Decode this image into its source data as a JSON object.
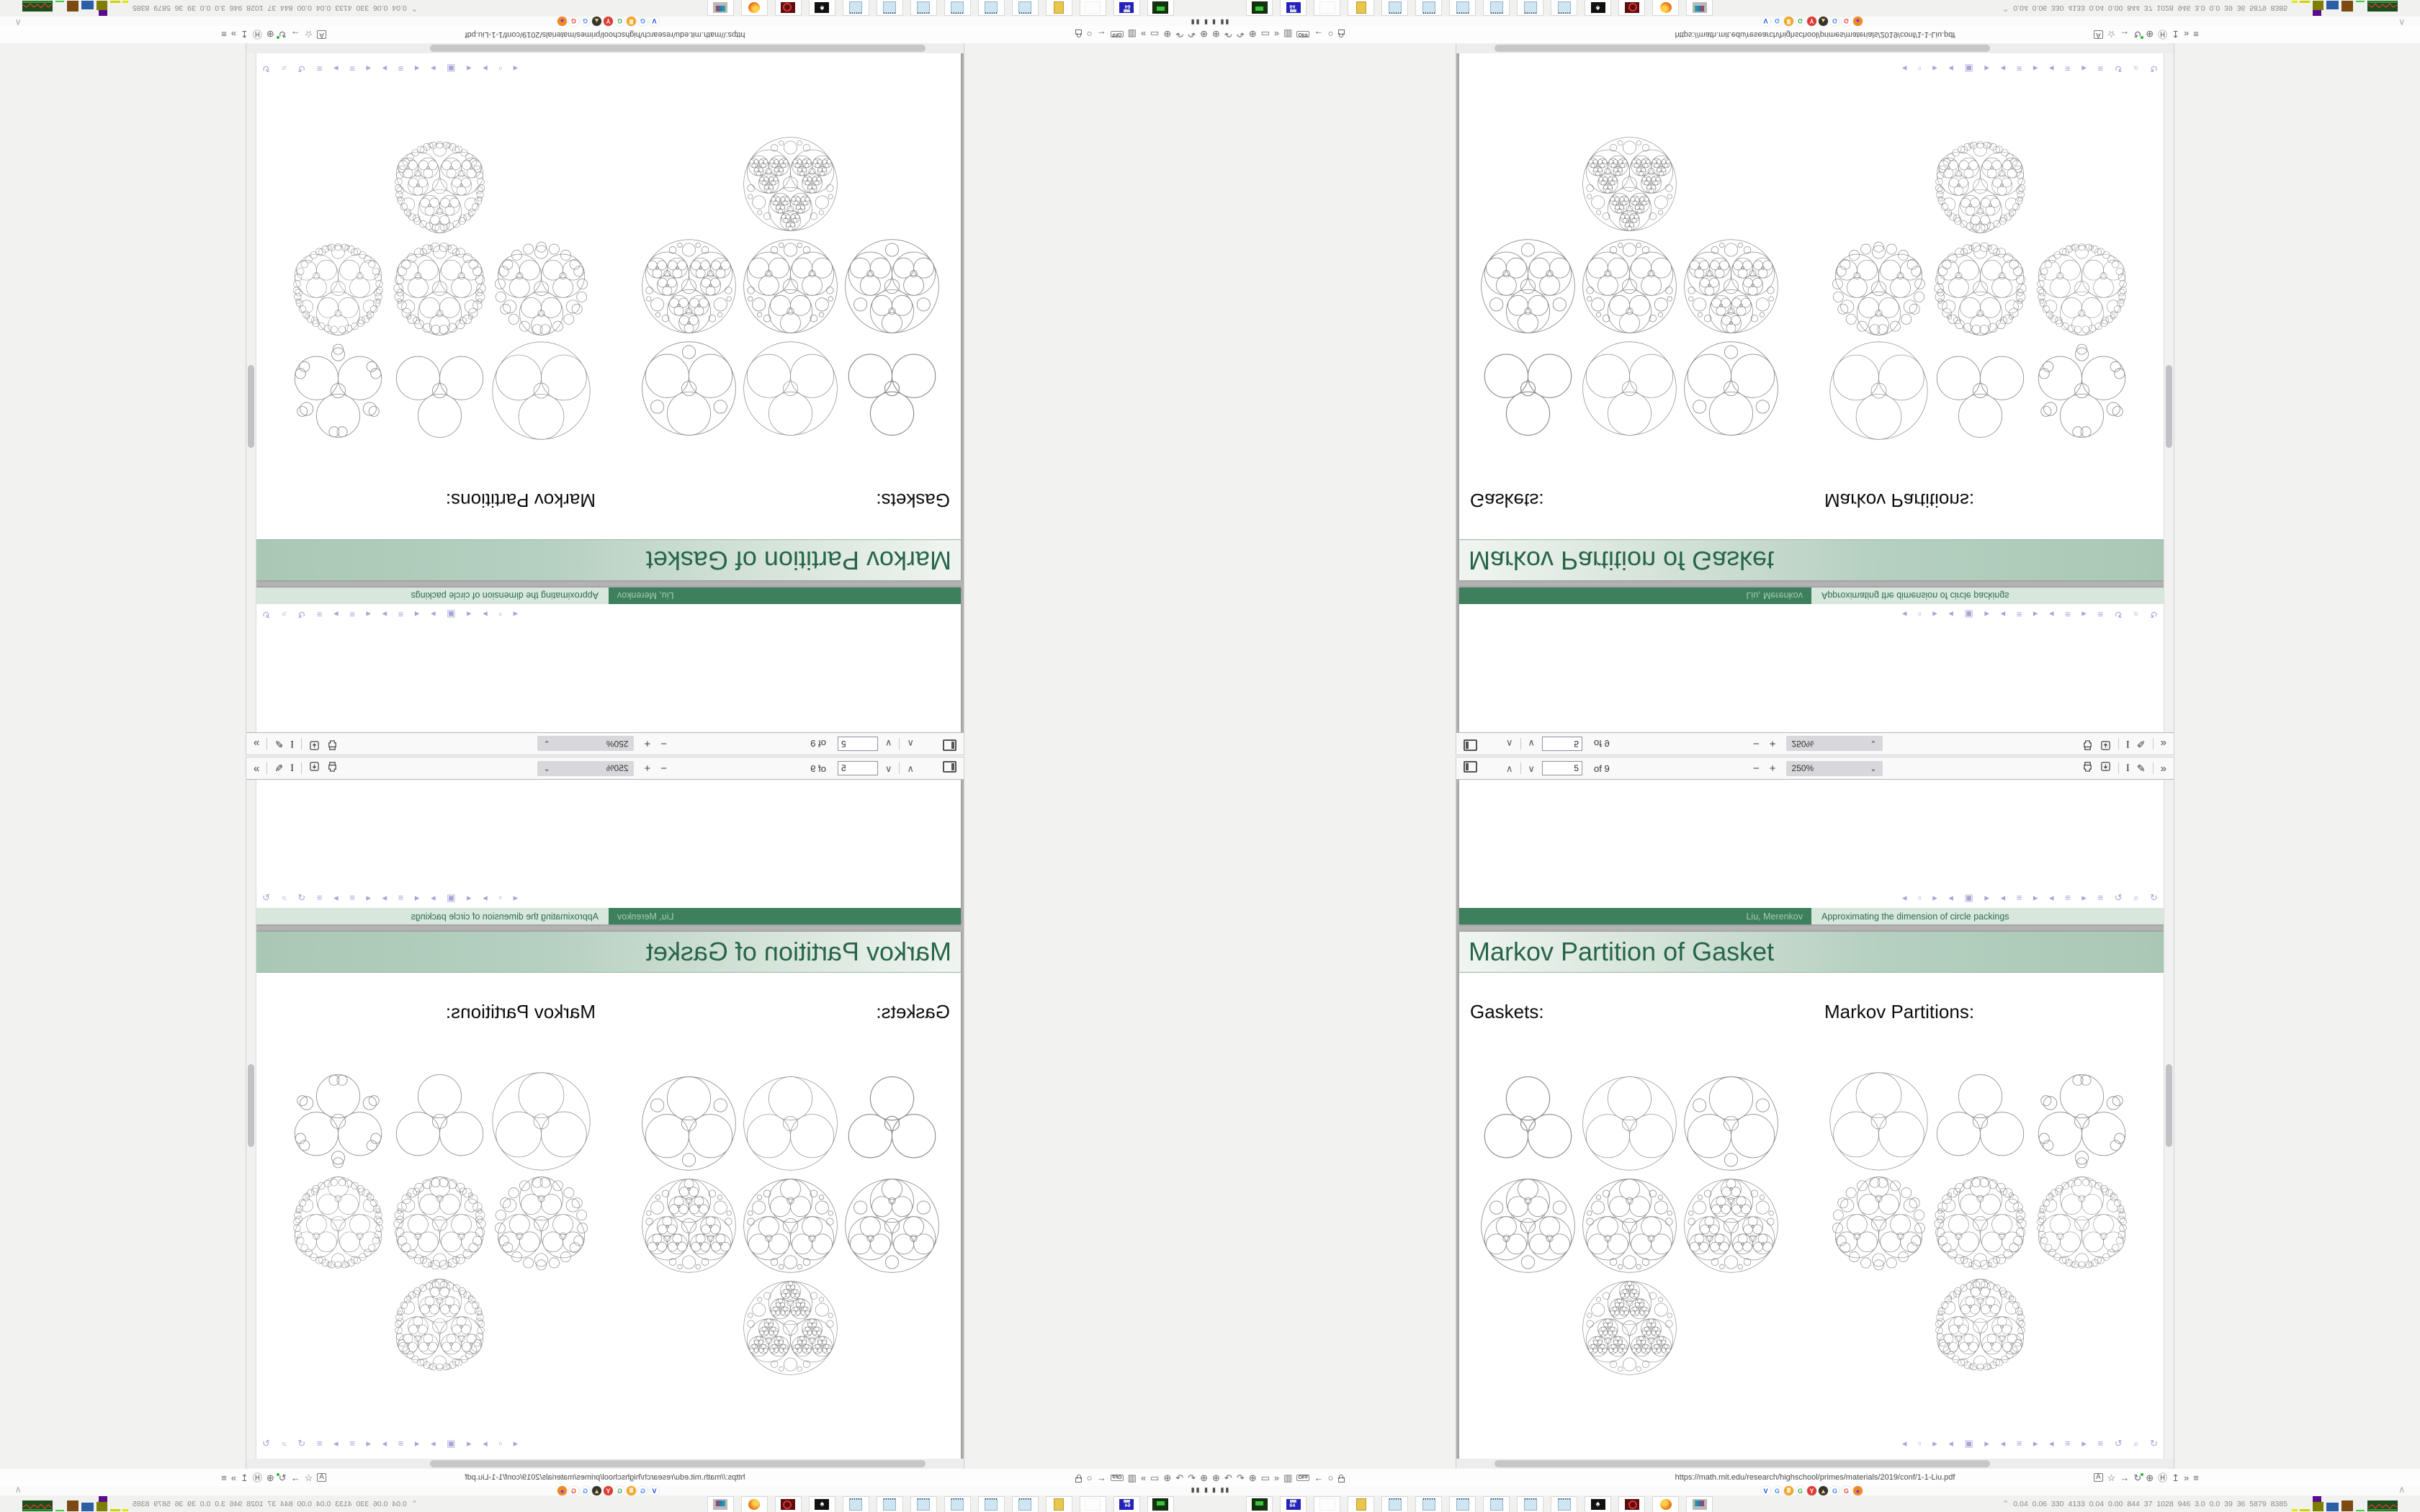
{
  "browser": {
    "url": "https://math.mit.edu/research/highschool/primes/materials/2019/conf/1-1-Liu.pdf",
    "chevron_up": "∧",
    "left_icons": [
      {
        "g": "⊕",
        "n": "globe-icon"
      },
      {
        "g": "↶",
        "n": "back-icon"
      },
      {
        "g": "↷",
        "n": "forward-icon"
      },
      {
        "g": "⊕",
        "n": "reload-icon"
      },
      {
        "g": "▭",
        "n": "window-icon"
      },
      {
        "g": "»",
        "n": "more-chevrons-icon"
      },
      {
        "g": "▥",
        "n": "trash-icon"
      },
      {
        "g": "OFF",
        "n": "off-badge",
        "k": "off"
      },
      {
        "g": "←",
        "n": "left-arrow-icon"
      },
      {
        "g": "○",
        "n": "shield-icon"
      },
      {
        "g": "",
        "n": "lock-icon",
        "k": "lock"
      }
    ],
    "right_icons": [
      {
        "g": "A",
        "n": "translate-icon",
        "k": "boxed"
      },
      {
        "g": "☆",
        "n": "bookmark-star-icon"
      },
      {
        "g": "→",
        "n": "right-arrow-icon"
      },
      {
        "g": "↻",
        "n": "refresh-icon",
        "k": "greendot"
      },
      {
        "g": "⊕",
        "n": "globe2-icon"
      },
      {
        "g": "Ⓗ",
        "n": "h-badge-icon"
      },
      {
        "g": "↥",
        "n": "share-icon"
      },
      {
        "g": "»",
        "n": "chevrons-icon"
      },
      {
        "g": "≡",
        "n": "menu-icon"
      }
    ],
    "favicons": [
      {
        "t": "V",
        "bg": "#ffffff",
        "fg": "#1a46e5"
      },
      {
        "t": "G",
        "bg": "#ffffff",
        "fg": "#4285f4"
      },
      {
        "t": "Ⅲ",
        "bg": "#f5a623",
        "fg": "#ffffff"
      },
      {
        "t": "G",
        "bg": "#ffffff",
        "fg": "#34a853"
      },
      {
        "t": "Y",
        "bg": "#e03c31",
        "fg": "#ffffff"
      },
      {
        "t": "▲",
        "bg": "#333333",
        "fg": "#f8d24a"
      },
      {
        "t": "G",
        "bg": "#ffffff",
        "fg": "#4285f4"
      },
      {
        "t": "G",
        "bg": "#ffffff",
        "fg": "#ea4335"
      },
      {
        "t": "●",
        "bg": "#f28b1f",
        "fg": "#7a2ee8"
      }
    ]
  },
  "pdf_viewer": {
    "page_input": "5",
    "page_count": "of 9",
    "zoom_value": "250%",
    "dropdown_arrow": "⌄",
    "prev_glyph": "∧",
    "next_glyph": "∨",
    "zoom_out": "−",
    "zoom_in": "+",
    "text_tool": "I",
    "draw_tool": "✎",
    "more_tools": "»"
  },
  "slide_prev": {
    "footer_authors": "Liu, Merenkov",
    "footer_title": "Approximating the dimension of circle packings"
  },
  "slide": {
    "title": "Markov Partition of Gasket",
    "left_label": "Gaskets:",
    "right_label": "Markov Partitions:",
    "left_figures": [
      {
        "name": "gasket-three-circles",
        "outer": false,
        "depth": 1,
        "sw": 0.8
      },
      {
        "name": "gasket-outer-circle",
        "outer": true,
        "depth": 1,
        "sw": 0.5
      },
      {
        "name": "gasket-with-gap-circles",
        "outer": true,
        "depth": 1,
        "gaps": true,
        "sw": 0.6
      },
      {
        "name": "gasket-depth-2",
        "outer": true,
        "depth": 2,
        "gaps": true,
        "sw": 0.6
      },
      {
        "name": "gasket-depth-2b",
        "outer": true,
        "depth": 2,
        "gaps": true,
        "gapDepth": 2,
        "sw": 0.55
      },
      {
        "name": "gasket-depth-3",
        "outer": true,
        "depth": 3,
        "gaps": true,
        "gapDepth": 2,
        "sw": 0.5
      },
      {
        "name": "gasket-depth-4",
        "outer": true,
        "depth": 4,
        "gaps": true,
        "gapDepth": 2,
        "sw": 0.45
      }
    ],
    "right_figures": [
      {
        "name": "markov-outer-three",
        "outer": true,
        "depth": 1,
        "sw": 0.5,
        "R": 48
      },
      {
        "name": "markov-three-circles",
        "outer": false,
        "depth": 1,
        "sw": 0.6
      },
      {
        "name": "markov-cluster",
        "outer": false,
        "depth": 1,
        "gaps": true,
        "ring": 9,
        "sw": 0.6
      },
      {
        "name": "markov-flower-1",
        "outer": false,
        "depth": 2,
        "gaps": true,
        "ring": 21,
        "sw": 0.5
      },
      {
        "name": "markov-flower-2",
        "outer": false,
        "depth": 2,
        "gaps": true,
        "gapDepth": 2,
        "ring": 30,
        "sw": 0.45
      },
      {
        "name": "markov-flower-3",
        "outer": false,
        "depth": 2,
        "gaps": true,
        "gapDepth": 2,
        "ring": 39,
        "sw": 0.4
      },
      {
        "name": "markov-flower-dense",
        "outer": false,
        "depth": 3,
        "gaps": true,
        "gapDepth": 2,
        "ring": 39,
        "sw": 0.4
      }
    ]
  },
  "nav_symbols": {
    "glyphs": "◂ ▫ ▸  ◂ ▣ ▸  ◂ ≡ ▸  ◂ ≡ ▸  ≡  ↺ ⌕ ↻"
  },
  "dock": {
    "items": [
      {
        "k": "drive",
        "n": "drive-app-icon"
      },
      {
        "k": "floppy",
        "n": "floppy-64-app-icon"
      },
      {
        "k": "blank",
        "n": "blank-app-icon"
      },
      {
        "k": "folder",
        "n": "folder-app-icon"
      },
      {
        "k": "notepad",
        "n": "notepad-app-icon"
      },
      {
        "k": "notepad",
        "n": "notepad-app-icon"
      },
      {
        "k": "notepad",
        "n": "notepad-app-icon"
      },
      {
        "k": "notepad",
        "n": "notepad-app-icon"
      },
      {
        "k": "notepad",
        "n": "notepad-app-icon"
      },
      {
        "k": "notepad",
        "n": "notepad-app-icon"
      },
      {
        "k": "spade",
        "n": "spade-app-icon"
      },
      {
        "k": "target",
        "n": "target-app-icon"
      },
      {
        "k": "firefox",
        "n": "firefox-app-icon"
      },
      {
        "k": "monitor",
        "n": "monitor-app-icon"
      }
    ]
  },
  "status": {
    "icon": "⌃",
    "tag_bars": "▮ ▮▮",
    "numbers": "0.04 0.06 330 4133 0.04 0.00 844 37 1028 946 3.0 0.0 39 36 5879 8385"
  },
  "colors": {
    "theme_dark_green": "#3e7f5e",
    "theme_light_green": "#d8e7dc",
    "banner_text": "#276648",
    "nav_symbols": "#a4a4d8",
    "page_gap": "#b3b3b3"
  }
}
